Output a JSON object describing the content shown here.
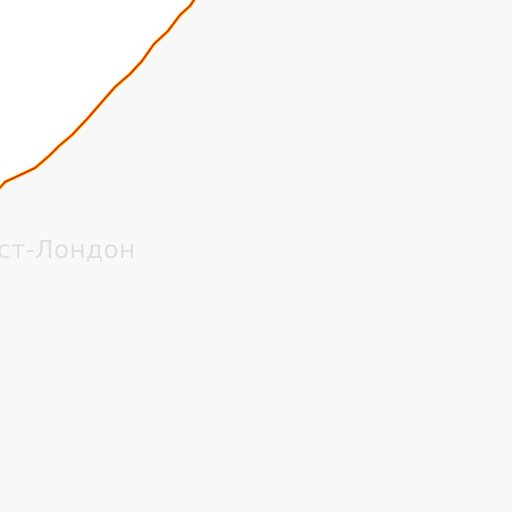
{
  "map": {
    "place_label": "Ист-Лондон",
    "colors": {
      "background": "#f8f8f8",
      "land": "#ffffff",
      "route_primary": "#e8280f",
      "route_secondary": "#f0c000"
    },
    "layers": {
      "route_line": "traffic-route-line"
    }
  }
}
